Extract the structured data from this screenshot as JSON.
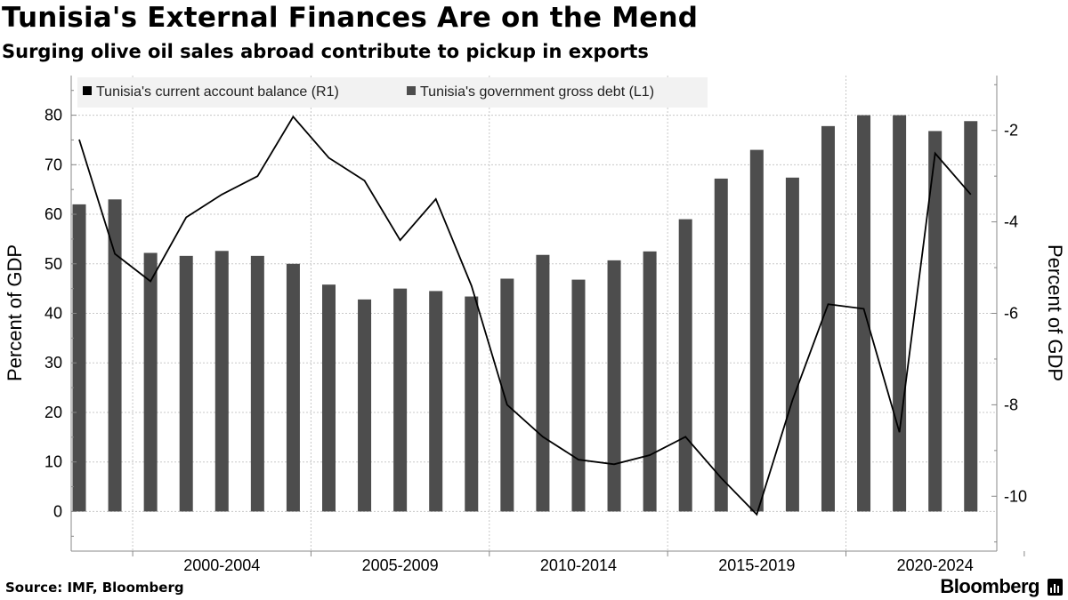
{
  "header": {
    "title": "Tunisia's External Finances Are on the Mend",
    "subtitle": "Surging olive oil sales abroad contribute to pickup in exports"
  },
  "footer": {
    "source": "Source: IMF, Bloomberg",
    "brand": "Bloomberg"
  },
  "colors": {
    "bar": "#4d4d4d",
    "line": "#000000",
    "grid": "#c8c8c8",
    "legend_bg": "#f2f2f2"
  },
  "chart_data": {
    "type": "bar",
    "title": "Tunisia's External Finances Are on the Mend",
    "subtitle": "Surging olive oil sales abroad contribute to pickup in exports",
    "x": [
      1998,
      1999,
      2000,
      2001,
      2002,
      2003,
      2004,
      2005,
      2006,
      2007,
      2008,
      2009,
      2010,
      2011,
      2012,
      2013,
      2014,
      2015,
      2016,
      2017,
      2018,
      2019,
      2020,
      2021,
      2022,
      2023,
      2024
    ],
    "x_tick_labels": [
      "2000-2004",
      "2005-2009",
      "2010-2014",
      "2015-2019",
      "2020-2024"
    ],
    "ylabel_left": "Percent of GDP",
    "ylabel_right": "Percent of GDP",
    "ylim_left": [
      -8,
      88
    ],
    "yticks_left": [
      0,
      10,
      20,
      30,
      40,
      50,
      60,
      70,
      80
    ],
    "ylim_right": [
      -11.2,
      -0.8
    ],
    "yticks_right": [
      -10,
      -8,
      -6,
      -4,
      -2
    ],
    "legend_position": "top-left",
    "series": [
      {
        "name": "Tunisia's current account balance  (R1)",
        "type": "line",
        "axis": "right",
        "values": [
          -2.2,
          -4.7,
          -5.3,
          -3.9,
          -3.4,
          -3.0,
          -1.7,
          -2.6,
          -3.1,
          -4.4,
          -3.5,
          -5.4,
          -8.0,
          -8.7,
          -9.2,
          -9.3,
          -9.1,
          -8.7,
          -9.6,
          -10.4,
          -7.9,
          -5.8,
          -5.9,
          -8.6,
          -2.5,
          -3.4,
          null
        ]
      },
      {
        "name": "Tunisia's government gross debt (L1)",
        "type": "bar",
        "axis": "left",
        "values": [
          62,
          63,
          52.2,
          51.6,
          52.6,
          51.6,
          50,
          45.8,
          42.8,
          45,
          44.5,
          43.4,
          47,
          51.8,
          46.8,
          50.7,
          52.5,
          59,
          67.2,
          73,
          67.4,
          77.8,
          80,
          80,
          76.8,
          78.8,
          null
        ]
      }
    ]
  }
}
